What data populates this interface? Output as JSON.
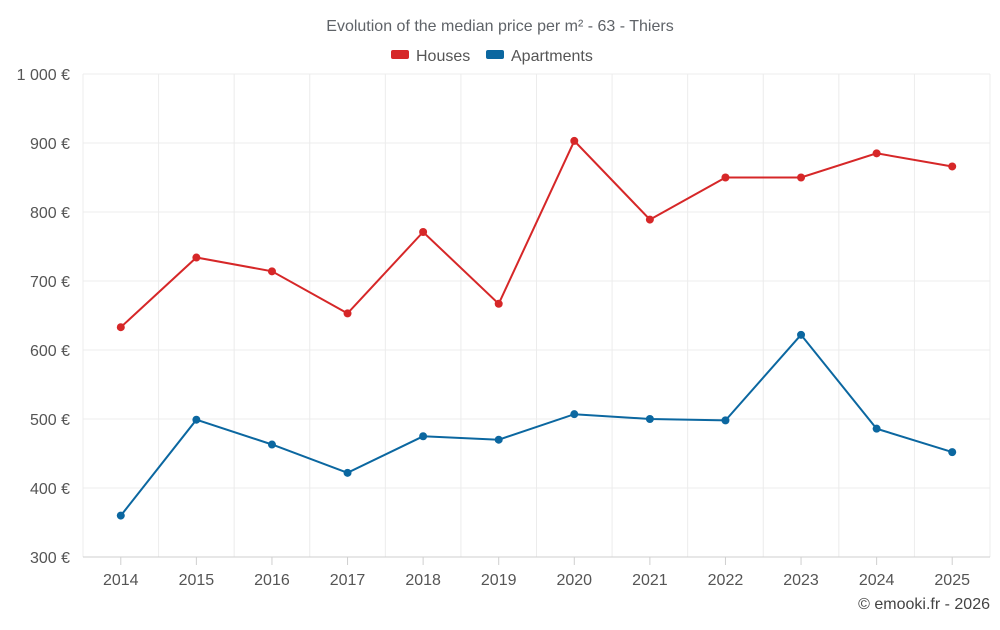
{
  "chart_data": {
    "type": "line",
    "title": "Evolution of the median price per m² - 63 - Thiers",
    "x": [
      "2014",
      "2015",
      "2016",
      "2017",
      "2018",
      "2019",
      "2020",
      "2021",
      "2022",
      "2023",
      "2024",
      "2025"
    ],
    "series": [
      {
        "name": "Houses",
        "color": "#d62728",
        "values": [
          633,
          734,
          714,
          653,
          771,
          667,
          903,
          789,
          850,
          850,
          885,
          866
        ]
      },
      {
        "name": "Apartments",
        "color": "#0b67a0",
        "values": [
          360,
          499,
          463,
          422,
          475,
          470,
          507,
          500,
          498,
          622,
          486,
          452
        ]
      }
    ],
    "ylim": [
      300,
      1000
    ],
    "yticks": [
      300,
      400,
      500,
      600,
      700,
      800,
      900,
      1000
    ],
    "ytick_labels": [
      "300 €",
      "400 €",
      "500 €",
      "600 €",
      "700 €",
      "800 €",
      "900 €",
      "1 000 €"
    ],
    "xlabel": "",
    "ylabel": "",
    "grid": true,
    "legend_position": "top-center"
  },
  "credit": "© emooki.fr - 2026"
}
